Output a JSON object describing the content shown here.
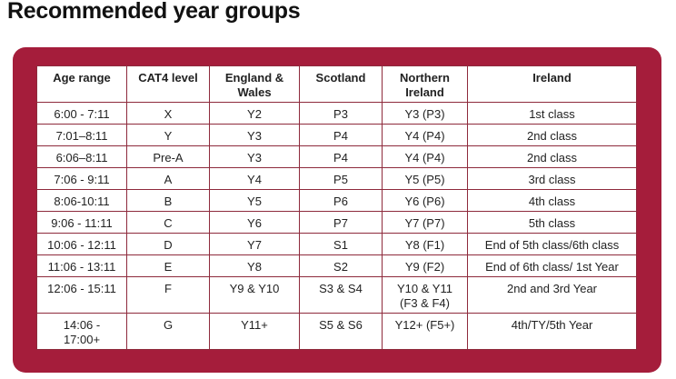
{
  "header": {
    "title": "Recommended year groups"
  },
  "table": {
    "headers": [
      "Age range",
      "CAT4 level",
      [
        "England &",
        "Wales"
      ],
      "Scotland",
      [
        "Northern",
        "Ireland"
      ],
      "Ireland"
    ],
    "rows": [
      [
        "6:00 - 7:11",
        "X",
        "Y2",
        "P3",
        "Y3 (P3)",
        "1st class"
      ],
      [
        "7:01–8:11",
        "Y",
        "Y3",
        "P4",
        "Y4 (P4)",
        "2nd class"
      ],
      [
        "6:06–8:11",
        "Pre-A",
        "Y3",
        "P4",
        "Y4 (P4)",
        "2nd class"
      ],
      [
        "7:06 - 9:11",
        "A",
        "Y4",
        "P5",
        "Y5 (P5)",
        "3rd class"
      ],
      [
        "8:06-10:11",
        "B",
        "Y5",
        "P6",
        "Y6 (P6)",
        "4th class"
      ],
      [
        "9:06 - 11:11",
        "C",
        "Y6",
        "P7",
        "Y7 (P7)",
        "5th class"
      ],
      [
        "10:06 - 12:11",
        "D",
        "Y7",
        "S1",
        "Y8 (F1)",
        "End of 5th class/6th class"
      ],
      [
        "11:06 - 13:11",
        "E",
        "Y8",
        "S2",
        "Y9 (F2)",
        "End of 6th class/ 1st Year"
      ],
      [
        "12:06 - 15:11",
        "F",
        "Y9 & Y10",
        "S3 & S4",
        [
          "Y10 & Y11",
          "(F3 & F4)"
        ],
        "2nd and 3rd Year"
      ],
      [
        [
          "14:06 -",
          "17:00+"
        ],
        "G",
        "Y11+",
        "S5 & S6",
        "Y12+ (F5+)",
        "4th/TY/5th Year"
      ]
    ]
  }
}
